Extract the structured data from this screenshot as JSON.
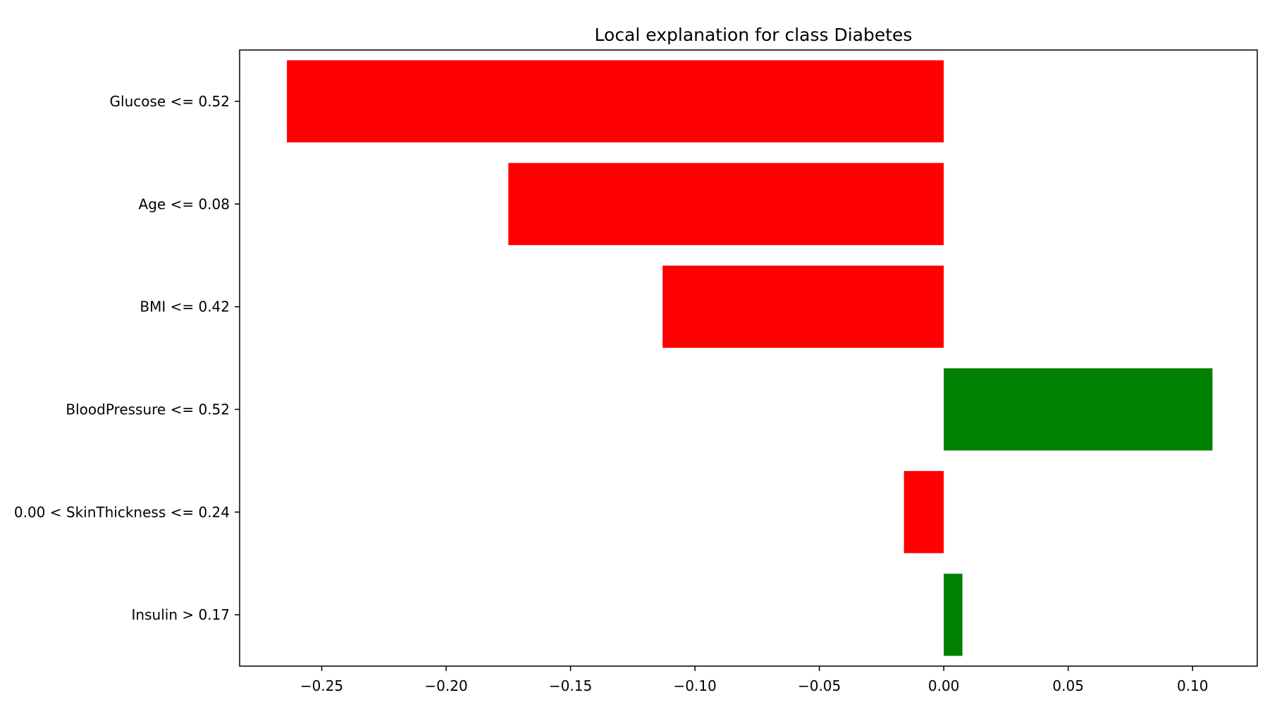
{
  "chart_data": {
    "type": "bar",
    "orientation": "horizontal",
    "title": "Local explanation for class Diabetes",
    "xlabel": "",
    "ylabel": "",
    "categories": [
      "Glucose <= 0.52",
      "Age <= 0.08",
      "BMI <= 0.42",
      "BloodPressure <= 0.52",
      "0.00 < SkinThickness <= 0.24",
      "Insulin > 0.17"
    ],
    "values": [
      -0.264,
      -0.175,
      -0.113,
      0.108,
      -0.016,
      0.0075
    ],
    "xlim": [
      -0.283,
      0.126
    ],
    "xticks": [
      -0.25,
      -0.2,
      -0.15,
      -0.1,
      -0.05,
      0.0,
      0.05,
      0.1
    ],
    "xtick_labels": [
      "−0.25",
      "−0.20",
      "−0.15",
      "−0.10",
      "−0.05",
      "0.00",
      "0.05",
      "0.10"
    ],
    "grid": false,
    "legend": "none",
    "colors": {
      "negative": "#ff0000",
      "positive": "#008000"
    }
  }
}
